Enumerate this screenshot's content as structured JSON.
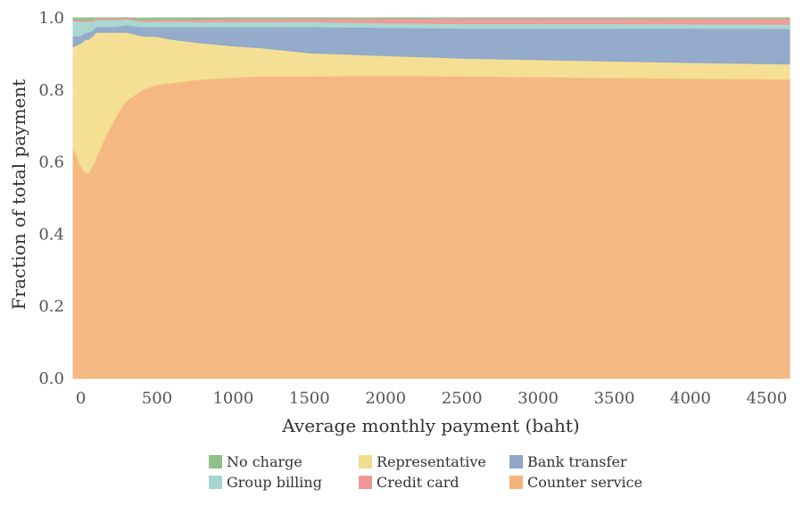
{
  "chart_data": {
    "type": "area",
    "stacked": true,
    "normalized": true,
    "xlabel": "Average monthly payment (baht)",
    "ylabel": "Fraction of total payment",
    "xlim": [
      -50,
      4650
    ],
    "ylim": [
      0,
      1
    ],
    "x_ticks": [
      0,
      500,
      1000,
      1500,
      2000,
      2500,
      3000,
      3500,
      4000,
      4500
    ],
    "y_ticks": [
      0.0,
      0.2,
      0.4,
      0.6,
      0.8,
      1.0
    ],
    "y_tick_labels": [
      "0.0",
      "0.2",
      "0.4",
      "0.6",
      "0.8",
      "1.0"
    ],
    "grid": true,
    "legend_position": "bottom",
    "x": [
      -50,
      0,
      30,
      50,
      80,
      100,
      150,
      200,
      250,
      300,
      400,
      500,
      600,
      800,
      1000,
      1200,
      1500,
      2000,
      2500,
      3000,
      3500,
      4000,
      4650
    ],
    "series": [
      {
        "name": "Counter service",
        "color": "#f4b47c",
        "values": [
          0.64,
          0.59,
          0.57,
          0.57,
          0.59,
          0.61,
          0.66,
          0.7,
          0.74,
          0.77,
          0.8,
          0.815,
          0.82,
          0.83,
          0.835,
          0.838,
          0.838,
          0.84,
          0.838,
          0.836,
          0.834,
          0.832,
          0.83
        ]
      },
      {
        "name": "Representative",
        "color": "#f3dd8e",
        "values": [
          0.28,
          0.34,
          0.37,
          0.37,
          0.36,
          0.35,
          0.3,
          0.26,
          0.22,
          0.19,
          0.15,
          0.133,
          0.12,
          0.1,
          0.087,
          0.078,
          0.065,
          0.055,
          0.05,
          0.048,
          0.046,
          0.044,
          0.042
        ]
      },
      {
        "name": "Bank transfer",
        "color": "#8fa7c9",
        "values": [
          0.03,
          0.02,
          0.02,
          0.02,
          0.015,
          0.015,
          0.015,
          0.015,
          0.017,
          0.02,
          0.025,
          0.027,
          0.035,
          0.045,
          0.053,
          0.059,
          0.072,
          0.078,
          0.083,
          0.087,
          0.091,
          0.095,
          0.098
        ]
      },
      {
        "name": "Group billing",
        "color": "#a6d5cf",
        "values": [
          0.04,
          0.04,
          0.03,
          0.03,
          0.025,
          0.02,
          0.02,
          0.02,
          0.018,
          0.017,
          0.015,
          0.015,
          0.015,
          0.014,
          0.014,
          0.014,
          0.014,
          0.013,
          0.013,
          0.013,
          0.013,
          0.012,
          0.012
        ]
      },
      {
        "name": "Credit card",
        "color": "#ef9896",
        "values": [
          0.004,
          0.004,
          0.004,
          0.004,
          0.004,
          0.004,
          0.004,
          0.004,
          0.004,
          0.004,
          0.004,
          0.005,
          0.006,
          0.007,
          0.008,
          0.008,
          0.009,
          0.012,
          0.014,
          0.014,
          0.014,
          0.015,
          0.016
        ]
      },
      {
        "name": "No charge",
        "color": "#8dc08a",
        "values": [
          0.006,
          0.006,
          0.006,
          0.006,
          0.006,
          0.006,
          0.006,
          0.006,
          0.006,
          0.005,
          0.005,
          0.005,
          0.004,
          0.004,
          0.003,
          0.003,
          0.002,
          0.002,
          0.002,
          0.002,
          0.002,
          0.002,
          0.002
        ]
      }
    ],
    "legend": [
      {
        "name": "No charge",
        "color": "#8dc08a"
      },
      {
        "name": "Group billing",
        "color": "#a6d5cf"
      },
      {
        "name": "Representative",
        "color": "#f3dd8e"
      },
      {
        "name": "Credit card",
        "color": "#ef9896"
      },
      {
        "name": "Bank transfer",
        "color": "#8fa7c9"
      },
      {
        "name": "Counter service",
        "color": "#f4b47c"
      }
    ]
  }
}
